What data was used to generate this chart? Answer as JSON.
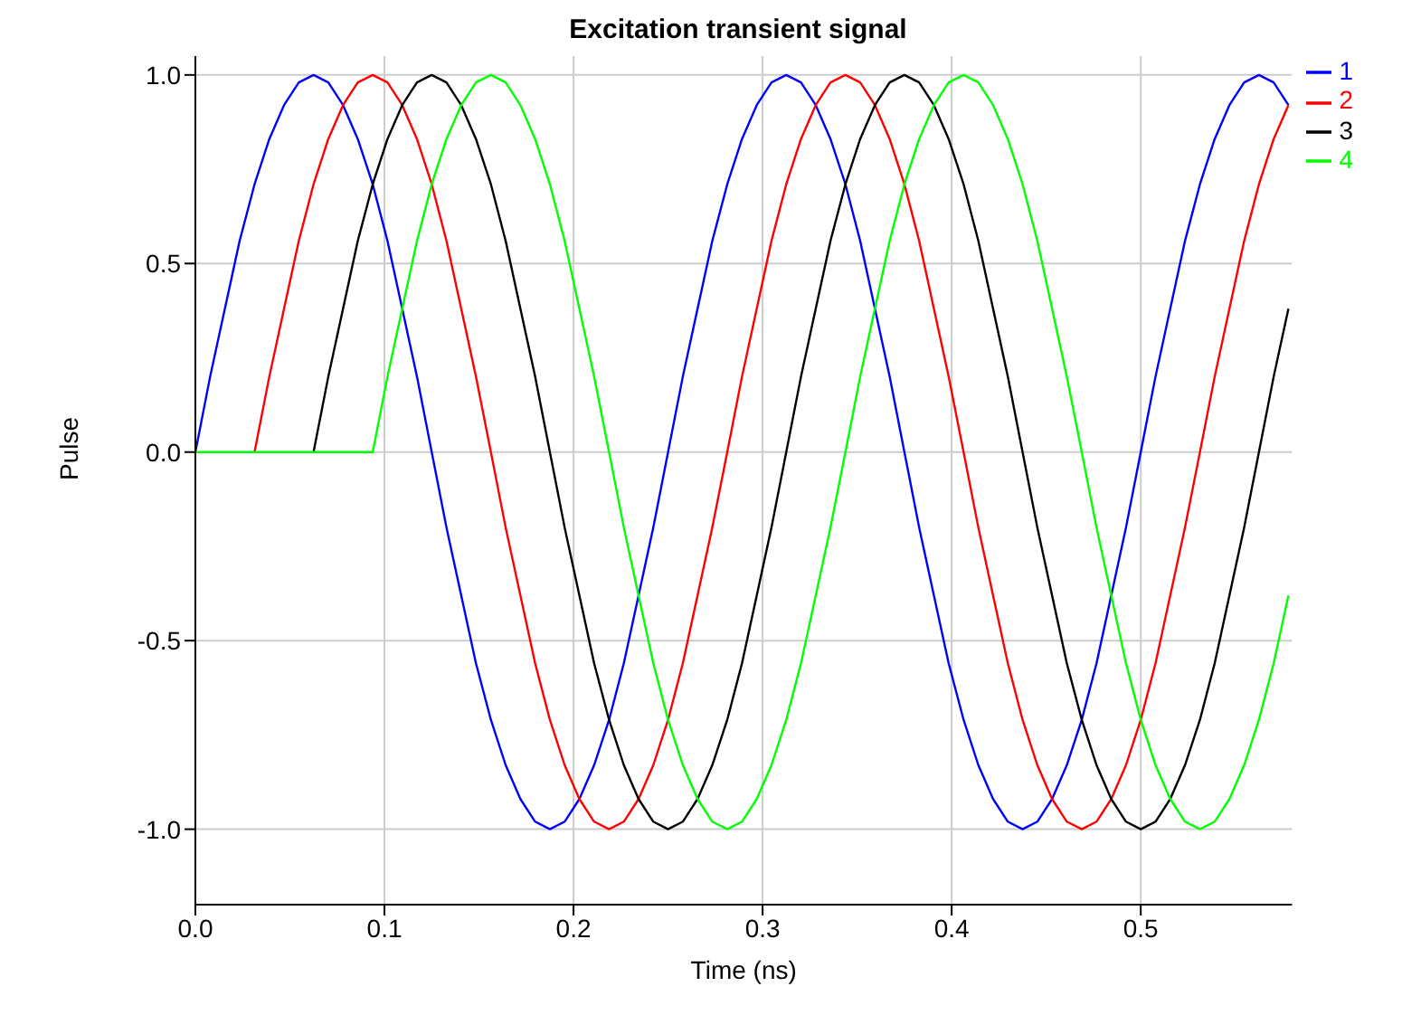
{
  "chart_data": {
    "type": "line",
    "title": "Excitation transient signal",
    "xlabel": "Time (ns)",
    "ylabel": "Pulse",
    "x": [
      0,
      0.0078,
      0.0156,
      0.0234,
      0.0313,
      0.0391,
      0.0469,
      0.0547,
      0.0625,
      0.0703,
      0.0781,
      0.0859,
      0.0938,
      0.1016,
      0.1094,
      0.1172,
      0.125,
      0.1328,
      0.1406,
      0.1484,
      0.1563,
      0.1641,
      0.1719,
      0.1797,
      0.1875,
      0.1953,
      0.2031,
      0.2109,
      0.2188,
      0.2266,
      0.2344,
      0.2422,
      0.25,
      0.2578,
      0.2656,
      0.2734,
      0.2813,
      0.2891,
      0.2969,
      0.3047,
      0.3125,
      0.3203,
      0.3281,
      0.3359,
      0.3438,
      0.3516,
      0.3594,
      0.3672,
      0.375,
      0.3828,
      0.3906,
      0.3984,
      0.4063,
      0.4141,
      0.4219,
      0.4297,
      0.4375,
      0.4453,
      0.4531,
      0.4609,
      0.4688,
      0.4766,
      0.4844,
      0.4922,
      0.5,
      0.5078,
      0.5156,
      0.5234,
      0.5313,
      0.5391,
      0.5469,
      0.5547,
      0.5625,
      0.5703,
      0.5781
    ],
    "series": [
      {
        "name": "1",
        "color": "#0000ff",
        "values": [
          0,
          0.2,
          0.38,
          0.56,
          0.71,
          0.83,
          0.92,
          0.98,
          1,
          0.98,
          0.92,
          0.83,
          0.71,
          0.56,
          0.38,
          0.2,
          0,
          -0.2,
          -0.38,
          -0.56,
          -0.71,
          -0.83,
          -0.92,
          -0.98,
          -1,
          -0.98,
          -0.92,
          -0.83,
          -0.71,
          -0.56,
          -0.38,
          -0.2,
          0,
          0.2,
          0.38,
          0.56,
          0.71,
          0.83,
          0.92,
          0.98,
          1,
          0.98,
          0.92,
          0.83,
          0.71,
          0.56,
          0.38,
          0.2,
          0,
          -0.2,
          -0.38,
          -0.56,
          -0.71,
          -0.83,
          -0.92,
          -0.98,
          -1,
          -0.98,
          -0.92,
          -0.83,
          -0.71,
          -0.56,
          -0.38,
          -0.2,
          0,
          0.2,
          0.38,
          0.56,
          0.71,
          0.83,
          0.92,
          0.98,
          1,
          0.98,
          0.92
        ]
      },
      {
        "name": "2",
        "color": "#ff0000",
        "values": [
          null,
          null,
          null,
          null,
          0,
          0.2,
          0.38,
          0.56,
          0.71,
          0.83,
          0.92,
          0.98,
          1,
          0.98,
          0.92,
          0.83,
          0.71,
          0.56,
          0.38,
          0.2,
          0,
          -0.2,
          -0.38,
          -0.56,
          -0.71,
          -0.83,
          -0.92,
          -0.98,
          -1,
          -0.98,
          -0.92,
          -0.83,
          -0.71,
          -0.56,
          -0.38,
          -0.2,
          0,
          0.2,
          0.38,
          0.56,
          0.71,
          0.83,
          0.92,
          0.98,
          1,
          0.98,
          0.92,
          0.83,
          0.71,
          0.56,
          0.38,
          0.2,
          0,
          -0.2,
          -0.38,
          -0.56,
          -0.71,
          -0.83,
          -0.92,
          -0.98,
          -1,
          -0.98,
          -0.92,
          -0.83,
          -0.71,
          -0.56,
          -0.38,
          -0.2,
          0,
          0.2,
          0.38,
          0.56,
          0.71,
          0.83,
          0.92
        ]
      },
      {
        "name": "3",
        "color": "#000000",
        "values": [
          null,
          null,
          null,
          null,
          null,
          null,
          null,
          null,
          0,
          0.2,
          0.38,
          0.56,
          0.71,
          0.83,
          0.92,
          0.98,
          1,
          0.98,
          0.92,
          0.83,
          0.71,
          0.56,
          0.38,
          0.2,
          0,
          -0.2,
          -0.38,
          -0.56,
          -0.71,
          -0.83,
          -0.92,
          -0.98,
          -1,
          -0.98,
          -0.92,
          -0.83,
          -0.71,
          -0.56,
          -0.38,
          -0.2,
          0,
          0.2,
          0.38,
          0.56,
          0.71,
          0.83,
          0.92,
          0.98,
          1,
          0.98,
          0.92,
          0.83,
          0.71,
          0.56,
          0.38,
          0.2,
          0,
          -0.2,
          -0.38,
          -0.56,
          -0.71,
          -0.83,
          -0.92,
          -0.98,
          -1,
          -0.98,
          -0.92,
          -0.83,
          -0.71,
          -0.56,
          -0.38,
          -0.2,
          0,
          0.2,
          0.38
        ]
      },
      {
        "name": "4",
        "color": "#00ff00",
        "values": [
          0,
          0,
          0,
          0,
          0,
          0,
          0,
          0,
          0,
          0,
          0,
          0,
          0,
          0.2,
          0.38,
          0.56,
          0.71,
          0.83,
          0.92,
          0.98,
          1,
          0.98,
          0.92,
          0.83,
          0.71,
          0.56,
          0.38,
          0.2,
          0,
          -0.2,
          -0.38,
          -0.56,
          -0.71,
          -0.83,
          -0.92,
          -0.98,
          -1,
          -0.98,
          -0.92,
          -0.83,
          -0.71,
          -0.56,
          -0.38,
          -0.2,
          0,
          0.2,
          0.38,
          0.56,
          0.71,
          0.83,
          0.92,
          0.98,
          1,
          0.98,
          0.92,
          0.83,
          0.71,
          0.56,
          0.38,
          0.2,
          0,
          -0.2,
          -0.38,
          -0.56,
          -0.71,
          -0.83,
          -0.92,
          -0.98,
          -1,
          -0.98,
          -0.92,
          -0.83,
          -0.71,
          -0.56,
          -0.38
        ]
      }
    ],
    "xlim": [
      0,
      0.58
    ],
    "xticks": [
      {
        "value": 0,
        "label": "0.0"
      },
      0.1,
      0.2,
      0.3,
      0.4,
      0.5
    ],
    "ylim": [
      -1.2,
      1.05
    ],
    "yticks": [
      {
        "value": -1,
        "label": "-1.0"
      },
      {
        "value": -0.5,
        "label": "-0.5"
      },
      {
        "value": 0,
        "label": "0.0"
      },
      {
        "value": 0.5,
        "label": "0.5"
      },
      {
        "value": 1,
        "label": "1.0"
      }
    ],
    "grid": true,
    "legend": "top right",
    "marker": "none",
    "line_style": "solid"
  }
}
